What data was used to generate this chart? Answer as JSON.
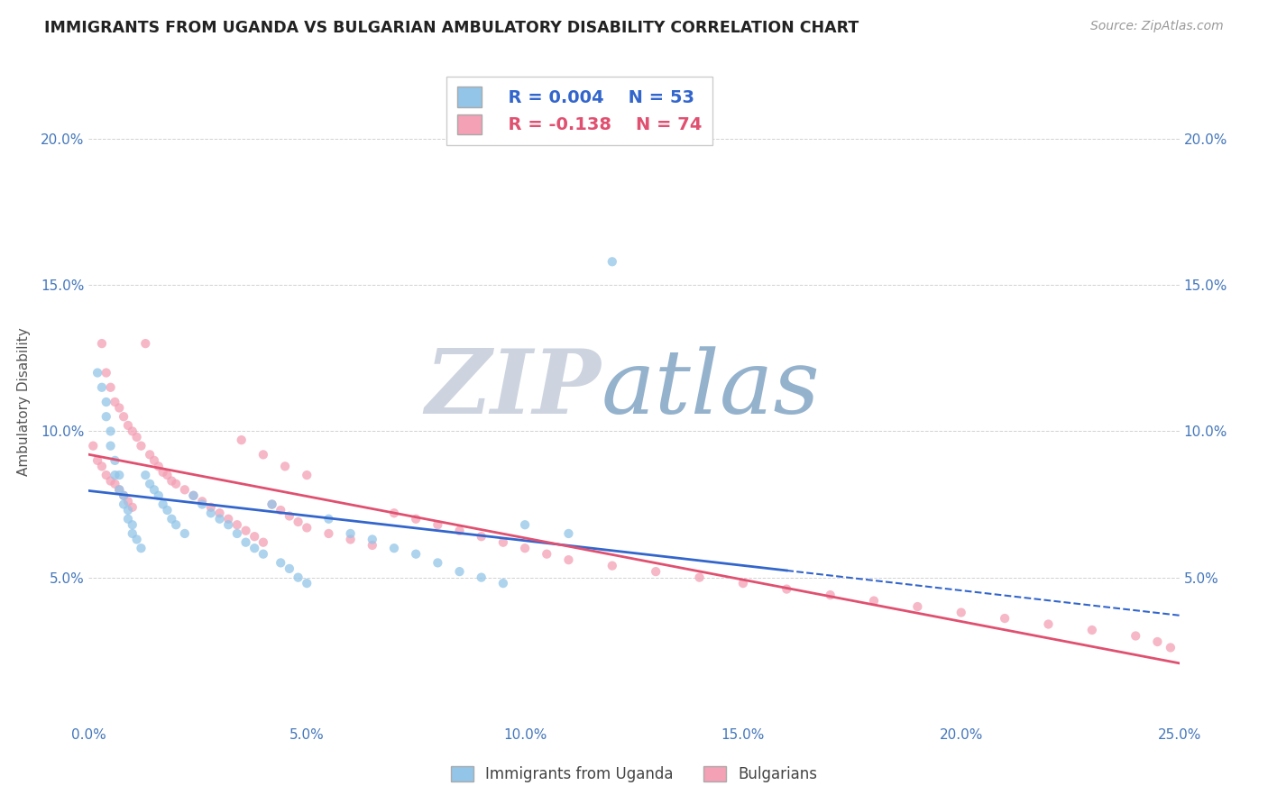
{
  "title": "IMMIGRANTS FROM UGANDA VS BULGARIAN AMBULATORY DISABILITY CORRELATION CHART",
  "source_text": "Source: ZipAtlas.com",
  "ylabel": "Ambulatory Disability",
  "xlim": [
    0.0,
    0.25
  ],
  "ylim": [
    0.0,
    0.22
  ],
  "xtick_labels": [
    "0.0%",
    "",
    "",
    "",
    "",
    "5.0%",
    "",
    "",
    "",
    "",
    "10.0%",
    "",
    "",
    "",
    "",
    "15.0%",
    "",
    "",
    "",
    "",
    "20.0%",
    "",
    "",
    "",
    "",
    "25.0%"
  ],
  "xtick_values": [
    0.0,
    0.01,
    0.02,
    0.03,
    0.04,
    0.05,
    0.06,
    0.07,
    0.08,
    0.09,
    0.1,
    0.11,
    0.12,
    0.13,
    0.14,
    0.15,
    0.16,
    0.17,
    0.18,
    0.19,
    0.2,
    0.21,
    0.22,
    0.23,
    0.24,
    0.25
  ],
  "xtick_display_labels": [
    "0.0%",
    "5.0%",
    "10.0%",
    "15.0%",
    "20.0%",
    "25.0%"
  ],
  "xtick_display_values": [
    0.0,
    0.05,
    0.1,
    0.15,
    0.2,
    0.25
  ],
  "ytick_labels": [
    "5.0%",
    "10.0%",
    "15.0%",
    "20.0%"
  ],
  "ytick_values": [
    0.05,
    0.1,
    0.15,
    0.2
  ],
  "legend_uganda_label": "Immigrants from Uganda",
  "legend_bulgarian_label": "Bulgarians",
  "legend_r_uganda": "R = 0.004",
  "legend_n_uganda": "N = 53",
  "legend_r_bulgarian": "R = -0.138",
  "legend_n_bulgarian": "N = 74",
  "color_uganda": "#92C5E8",
  "color_bulgarian": "#F4A0B5",
  "trendline_uganda_color": "#3366CC",
  "trendline_bulgarian_color": "#E05070",
  "watermark_zip": "ZIP",
  "watermark_atlas": "atlas",
  "watermark_zip_color": "#C8D0DC",
  "watermark_atlas_color": "#8AAAC8",
  "uganda_x": [
    0.002,
    0.003,
    0.004,
    0.004,
    0.005,
    0.005,
    0.006,
    0.006,
    0.007,
    0.007,
    0.008,
    0.008,
    0.009,
    0.009,
    0.01,
    0.01,
    0.011,
    0.012,
    0.013,
    0.014,
    0.015,
    0.016,
    0.017,
    0.018,
    0.019,
    0.02,
    0.022,
    0.024,
    0.026,
    0.028,
    0.03,
    0.032,
    0.034,
    0.036,
    0.038,
    0.04,
    0.042,
    0.044,
    0.046,
    0.048,
    0.05,
    0.055,
    0.06,
    0.065,
    0.07,
    0.075,
    0.08,
    0.085,
    0.09,
    0.095,
    0.1,
    0.11,
    0.12
  ],
  "uganda_y": [
    0.12,
    0.115,
    0.11,
    0.105,
    0.1,
    0.095,
    0.09,
    0.085,
    0.085,
    0.08,
    0.078,
    0.075,
    0.073,
    0.07,
    0.068,
    0.065,
    0.063,
    0.06,
    0.085,
    0.082,
    0.08,
    0.078,
    0.075,
    0.073,
    0.07,
    0.068,
    0.065,
    0.078,
    0.075,
    0.072,
    0.07,
    0.068,
    0.065,
    0.062,
    0.06,
    0.058,
    0.075,
    0.055,
    0.053,
    0.05,
    0.048,
    0.07,
    0.065,
    0.063,
    0.06,
    0.058,
    0.055,
    0.052,
    0.05,
    0.048,
    0.068,
    0.065,
    0.158
  ],
  "bulgarian_x": [
    0.001,
    0.002,
    0.003,
    0.003,
    0.004,
    0.004,
    0.005,
    0.005,
    0.006,
    0.006,
    0.007,
    0.007,
    0.008,
    0.008,
    0.009,
    0.009,
    0.01,
    0.01,
    0.011,
    0.012,
    0.013,
    0.014,
    0.015,
    0.016,
    0.017,
    0.018,
    0.019,
    0.02,
    0.022,
    0.024,
    0.026,
    0.028,
    0.03,
    0.032,
    0.034,
    0.036,
    0.038,
    0.04,
    0.042,
    0.044,
    0.046,
    0.048,
    0.05,
    0.055,
    0.06,
    0.065,
    0.07,
    0.075,
    0.08,
    0.085,
    0.09,
    0.095,
    0.1,
    0.105,
    0.11,
    0.12,
    0.13,
    0.14,
    0.15,
    0.16,
    0.17,
    0.18,
    0.19,
    0.2,
    0.21,
    0.22,
    0.23,
    0.24,
    0.245,
    0.248,
    0.035,
    0.04,
    0.045,
    0.05
  ],
  "bulgarian_y": [
    0.095,
    0.09,
    0.088,
    0.13,
    0.085,
    0.12,
    0.083,
    0.115,
    0.082,
    0.11,
    0.08,
    0.108,
    0.078,
    0.105,
    0.076,
    0.102,
    0.074,
    0.1,
    0.098,
    0.095,
    0.13,
    0.092,
    0.09,
    0.088,
    0.086,
    0.085,
    0.083,
    0.082,
    0.08,
    0.078,
    0.076,
    0.074,
    0.072,
    0.07,
    0.068,
    0.066,
    0.064,
    0.062,
    0.075,
    0.073,
    0.071,
    0.069,
    0.067,
    0.065,
    0.063,
    0.061,
    0.072,
    0.07,
    0.068,
    0.066,
    0.064,
    0.062,
    0.06,
    0.058,
    0.056,
    0.054,
    0.052,
    0.05,
    0.048,
    0.046,
    0.044,
    0.042,
    0.04,
    0.038,
    0.036,
    0.034,
    0.032,
    0.03,
    0.028,
    0.026,
    0.097,
    0.092,
    0.088,
    0.085
  ]
}
